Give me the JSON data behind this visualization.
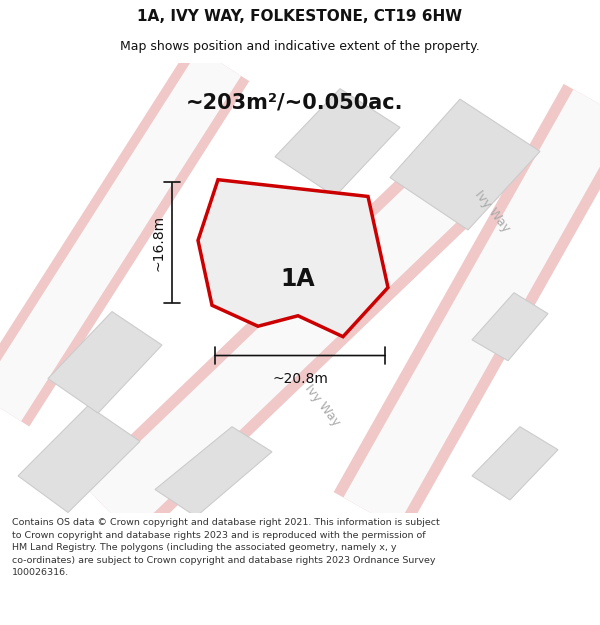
{
  "title": "1A, IVY WAY, FOLKESTONE, CT19 6HW",
  "subtitle": "Map shows position and indicative extent of the property.",
  "area_label": "~203m²/~0.050ac.",
  "property_label": "1A",
  "width_label": "~20.8m",
  "height_label": "~16.8m",
  "footer_lines": [
    "Contains OS data © Crown copyright and database right 2021. This information is subject",
    "to Crown copyright and database rights 2023 and is reproduced with the permission of",
    "HM Land Registry. The polygons (including the associated geometry, namely x, y",
    "co-ordinates) are subject to Crown copyright and database rights 2023 Ordnance Survey",
    "100026316."
  ],
  "bg_color": "#ffffff",
  "map_bg": "#f5f5f5",
  "building_color": "#e0e0e0",
  "building_border": "#cccccc",
  "property_fill": "#eeeeee",
  "property_border": "#cc0000",
  "road_pink": "#f0c8c8",
  "road_white": "#f9f9f9",
  "dim_line_color": "#111111",
  "road_label_color": "#aaaaaa",
  "title_color": "#111111",
  "footer_color": "#333333"
}
